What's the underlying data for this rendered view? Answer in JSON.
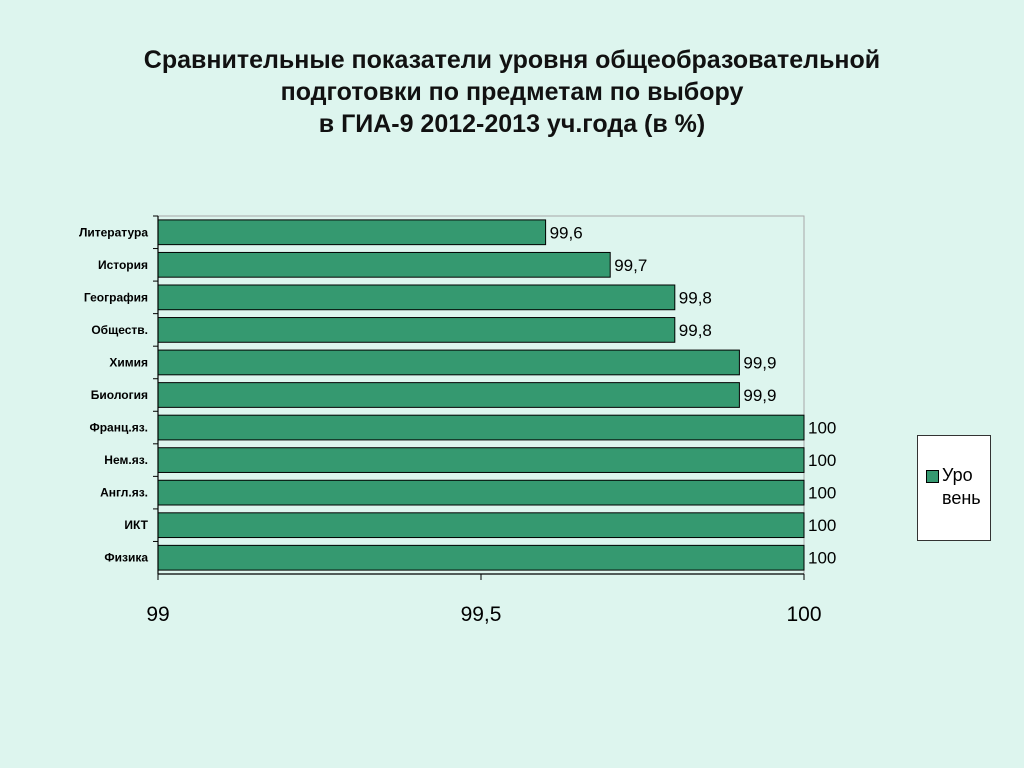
{
  "title_lines": [
    "Сравнительные показатели уровня общеобразовательной",
    "подготовки по предметам по выбору",
    "в ГИА-9 2012-2013 уч.года (в %)"
  ],
  "legend": {
    "line1": "Уро",
    "line2": "вень"
  },
  "colors": {
    "bar": "#359970",
    "background": "#ddf5ee",
    "plot_area": "#ddf5ee"
  },
  "chart_data": {
    "type": "bar",
    "orientation": "horizontal",
    "title": "Сравнительные показатели уровня общеобразовательной подготовки по предметам по выбору в ГИА-9 2012-2013 уч.года (в %)",
    "categories": [
      "Литература",
      "История",
      "География",
      "Обществ.",
      "Химия",
      "Биология",
      "Франц.яз.",
      "Нем.яз.",
      "Англ.яз.",
      "ИКТ",
      "Физика"
    ],
    "series": [
      {
        "name": "Уровень",
        "values": [
          99.6,
          99.7,
          99.8,
          99.8,
          99.9,
          99.9,
          100,
          100,
          100,
          100,
          100
        ]
      }
    ],
    "data_labels": [
      "99,6",
      "99,7",
      "99,8",
      "99,8",
      "99,9",
      "99,9",
      "100",
      "100",
      "100",
      "100",
      "100"
    ],
    "x_ticks": [
      99,
      99.5,
      100
    ],
    "x_tick_labels": [
      "99",
      "99,5",
      "100"
    ],
    "xlim": [
      99,
      100
    ],
    "grid": false,
    "legend_position": "right"
  }
}
